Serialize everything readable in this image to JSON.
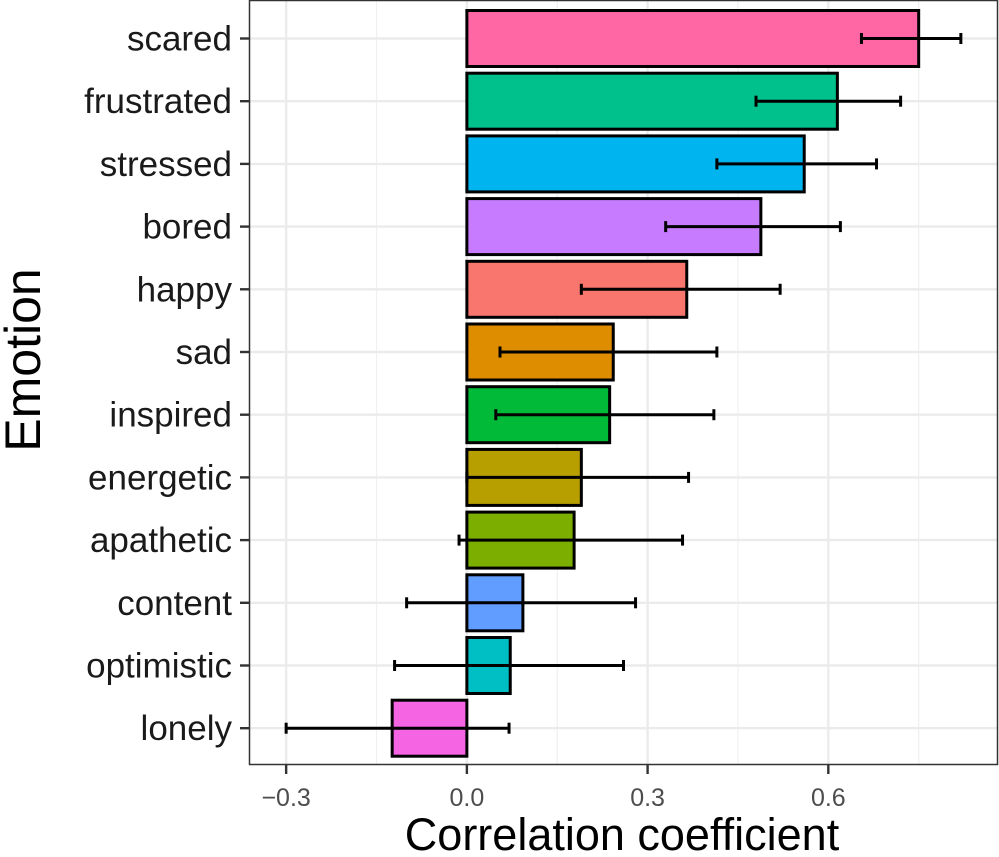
{
  "chart_data": {
    "type": "bar",
    "orientation": "horizontal",
    "xlabel": "Correlation coefficient",
    "ylabel": "Emotion",
    "xlim": [
      -0.36,
      0.88
    ],
    "xticks": [
      {
        "value": -0.3,
        "label": "−0.3"
      },
      {
        "value": 0.0,
        "label": "0.0"
      },
      {
        "value": 0.3,
        "label": "0.3"
      },
      {
        "value": 0.6,
        "label": "0.6"
      }
    ],
    "grid": true,
    "legend": "none",
    "categories": [
      "scared",
      "frustrated",
      "stressed",
      "bored",
      "happy",
      "sad",
      "inspired",
      "energetic",
      "apathetic",
      "content",
      "optimistic",
      "lonely"
    ],
    "values": [
      0.75,
      0.615,
      0.56,
      0.488,
      0.365,
      0.243,
      0.237,
      0.19,
      0.178,
      0.093,
      0.072,
      -0.124
    ],
    "error_low": [
      0.655,
      0.48,
      0.415,
      0.33,
      0.19,
      0.055,
      0.048,
      0.0,
      -0.013,
      -0.1,
      -0.12,
      -0.3
    ],
    "error_high": [
      0.82,
      0.72,
      0.68,
      0.62,
      0.52,
      0.415,
      0.41,
      0.368,
      0.358,
      0.28,
      0.26,
      0.07
    ],
    "colors": [
      "#FF67A4",
      "#00C08B",
      "#00B4EF",
      "#C77CFF",
      "#F8766D",
      "#DE8C00",
      "#00BA38",
      "#B79F00",
      "#7CAE00",
      "#619CFF",
      "#00BFC4",
      "#F564E3"
    ]
  }
}
